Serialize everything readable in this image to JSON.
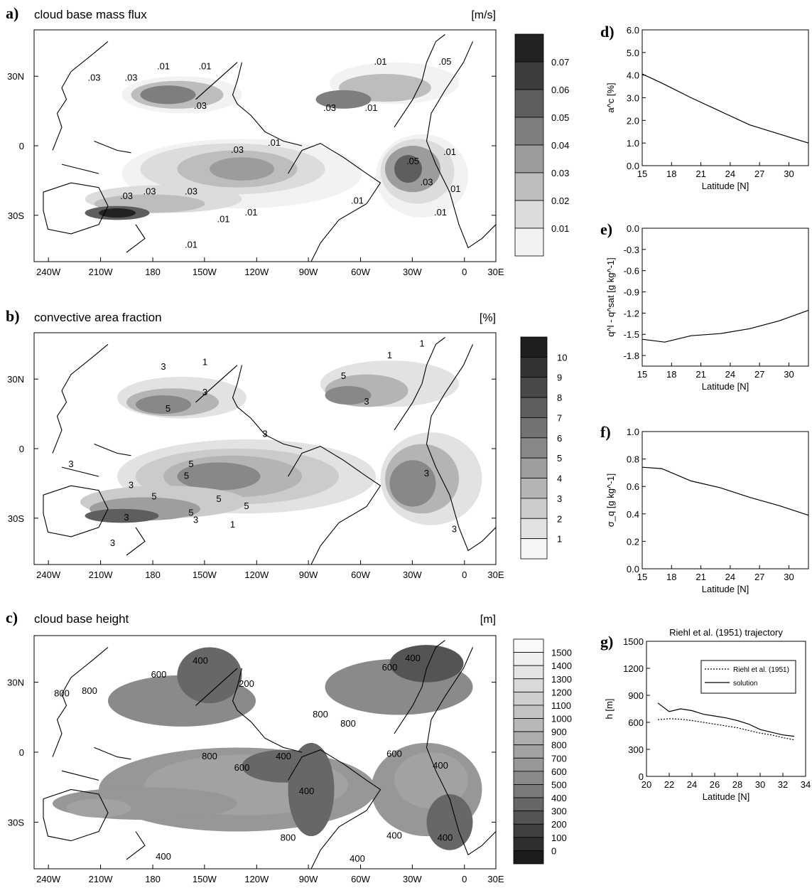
{
  "chart_data": [
    {
      "type": "heatmap",
      "panel_label": "a)",
      "title": "cloud base mass flux",
      "unit": "[m/s]",
      "x_ticks": [
        "240W",
        "210W",
        "180",
        "150W",
        "120W",
        "90W",
        "60W",
        "30W",
        "0",
        "30E"
      ],
      "y_ticks": [
        "30N",
        "0",
        "30S"
      ],
      "colorbar": {
        "levels": [
          "0.07",
          "0.06",
          "0.05",
          "0.04",
          "0.03",
          "0.02",
          "0.01"
        ],
        "colors": [
          "#222222",
          "#3d3d3d",
          "#5e5e5e",
          "#7e7e7e",
          "#9c9c9c",
          "#bdbdbd",
          "#dcdcdc",
          "#f2f2f2"
        ]
      },
      "contour_labels": [
        ".03",
        ".03",
        ".01",
        ".01",
        ".03",
        ".01",
        ".01",
        ".05",
        ".03",
        ".01",
        ".03",
        ".05",
        ".03",
        ".03",
        ".03",
        ".01",
        ".01",
        ".01",
        ".01",
        ".01",
        ".01",
        ".03",
        ".01"
      ]
    },
    {
      "type": "heatmap",
      "panel_label": "b)",
      "title": "convective area fraction",
      "unit": "[%]",
      "x_ticks": [
        "240W",
        "210W",
        "180",
        "150W",
        "120W",
        "90W",
        "60W",
        "30W",
        "0",
        "30E"
      ],
      "y_ticks": [
        "30N",
        "0",
        "30S"
      ],
      "colorbar": {
        "levels": [
          "10",
          "9",
          "8",
          "7",
          "6",
          "5",
          "4",
          "3",
          "2",
          "1"
        ],
        "colors": [
          "#1e1e1e",
          "#333333",
          "#494949",
          "#5e5e5e",
          "#737373",
          "#888888",
          "#9e9e9e",
          "#b4b4b4",
          "#cbcbcb",
          "#e2e2e2",
          "#f5f5f5"
        ]
      },
      "contour_labels": [
        "3",
        "1",
        "3",
        "5",
        "5",
        "3",
        "1",
        "1",
        "3",
        "5",
        "5",
        "3",
        "3",
        "5",
        "3",
        "3",
        "5",
        "5",
        "5",
        "3",
        "3",
        "3",
        "1"
      ]
    },
    {
      "type": "heatmap",
      "panel_label": "c)",
      "title": "cloud base height",
      "unit": "[m]",
      "x_ticks": [
        "240W",
        "210W",
        "180",
        "150W",
        "120W",
        "90W",
        "60W",
        "30W",
        "0",
        "30E"
      ],
      "y_ticks": [
        "30N",
        "0",
        "30S"
      ],
      "colorbar": {
        "levels": [
          "1500",
          "1400",
          "1300",
          "1200",
          "1100",
          "1000",
          "900",
          "800",
          "700",
          "600",
          "500",
          "400",
          "300",
          "200",
          "100",
          "0"
        ],
        "colors": [
          "#fafafa",
          "#efefef",
          "#e4e4e4",
          "#d9d9d9",
          "#cecece",
          "#c3c3c3",
          "#b8b8b8",
          "#adadad",
          "#a2a2a2",
          "#979797",
          "#8a8a8a",
          "#7a7a7a",
          "#676767",
          "#545454",
          "#414141",
          "#2e2e2e",
          "#1c1c1c"
        ]
      },
      "contour_labels": [
        "800",
        "800",
        "600",
        "400",
        "200",
        "600",
        "400",
        "800",
        "800",
        "800",
        "600",
        "400",
        "400",
        "800",
        "600",
        "400",
        "400",
        "400",
        "400",
        "400"
      ]
    },
    {
      "type": "line",
      "panel_label": "d)",
      "ylabel": "a^c [%]",
      "xlabel": "Latitude [N]",
      "xlim": [
        15,
        32
      ],
      "ylim": [
        0,
        6
      ],
      "x_ticks": [
        "15",
        "18",
        "21",
        "24",
        "27",
        "30"
      ],
      "y_ticks": [
        "0.0",
        "1.0",
        "2.0",
        "3.0",
        "4.0",
        "5.0",
        "6.0"
      ],
      "series": [
        {
          "x": [
            15,
            17,
            20,
            23,
            26,
            29,
            32
          ],
          "values": [
            4.05,
            3.65,
            3.0,
            2.4,
            1.8,
            1.4,
            1.0
          ]
        }
      ]
    },
    {
      "type": "line",
      "panel_label": "e)",
      "ylabel": "q^l - q^sat [g kg^-1]",
      "xlabel": "Latitude [N]",
      "xlim": [
        15,
        32
      ],
      "ylim": [
        -1.95,
        0
      ],
      "x_ticks": [
        "15",
        "18",
        "21",
        "24",
        "27",
        "30"
      ],
      "y_ticks": [
        "0.0",
        "-0.3",
        "-0.6",
        "-0.9",
        "-1.2",
        "-1.5",
        "-1.8"
      ],
      "series": [
        {
          "x": [
            15,
            17.3,
            20,
            23,
            26,
            29,
            32
          ],
          "values": [
            -1.57,
            -1.61,
            -1.52,
            -1.49,
            -1.42,
            -1.31,
            -1.16
          ]
        }
      ]
    },
    {
      "type": "line",
      "panel_label": "f)",
      "ylabel": "σ_q [g kg^-1]",
      "xlabel": "Latitude [N]",
      "xlim": [
        15,
        32
      ],
      "ylim": [
        0,
        1
      ],
      "x_ticks": [
        "15",
        "18",
        "21",
        "24",
        "27",
        "30"
      ],
      "y_ticks": [
        "0.0",
        "0.2",
        "0.4",
        "0.6",
        "0.8",
        "1.0"
      ],
      "series": [
        {
          "x": [
            15,
            17,
            20,
            23,
            26,
            29,
            32
          ],
          "values": [
            0.74,
            0.73,
            0.64,
            0.59,
            0.52,
            0.46,
            0.39
          ]
        }
      ]
    },
    {
      "type": "line",
      "panel_label": "g)",
      "title": "Riehl et al. (1951) trajectory",
      "ylabel": "h [m]",
      "xlabel": "Latitude [N]",
      "xlim": [
        20,
        34
      ],
      "ylim": [
        0,
        1500
      ],
      "x_ticks": [
        "20",
        "22",
        "24",
        "26",
        "28",
        "30",
        "32",
        "34"
      ],
      "y_ticks": [
        "0",
        "300",
        "600",
        "900",
        "1200",
        "1500"
      ],
      "legend_position": "top-right",
      "series": [
        {
          "name": "Riehl et al. (1951)",
          "style": "dotted",
          "x": [
            21,
            22,
            23,
            24,
            25,
            26,
            27,
            28,
            29,
            30,
            31,
            32,
            33
          ],
          "values": [
            630,
            640,
            635,
            620,
            600,
            580,
            560,
            540,
            510,
            480,
            460,
            430,
            405
          ]
        },
        {
          "name": "solution",
          "style": "solid",
          "x": [
            21,
            22,
            23,
            24,
            25,
            26,
            27,
            28,
            29,
            30,
            31,
            32,
            33
          ],
          "values": [
            815,
            720,
            750,
            730,
            690,
            670,
            650,
            620,
            580,
            520,
            490,
            460,
            445
          ]
        }
      ]
    }
  ]
}
